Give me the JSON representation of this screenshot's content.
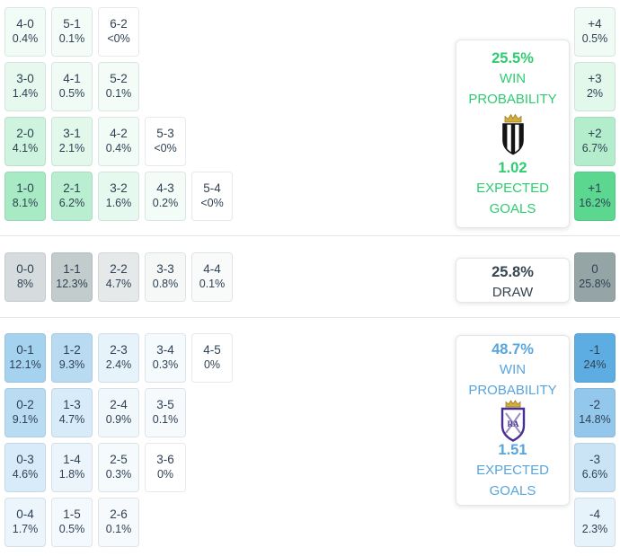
{
  "chart_data": {
    "type": "heatmap",
    "description": "Correct-score probability matrix with win/draw/loss summary panels and goal-difference distribution column",
    "colors": {
      "home_accent": "#2ecc71",
      "draw_accent": "#95a5a6",
      "away_accent": "#5dade2",
      "cell_text": "#2f4154"
    },
    "matrix": {
      "home": [
        [
          {
            "score": "4-0",
            "pct": "0.4%",
            "value": 0.4
          },
          {
            "score": "5-1",
            "pct": "0.1%",
            "value": 0.1
          },
          {
            "score": "6-2",
            "pct": "<0%",
            "value": 0
          }
        ],
        [
          {
            "score": "3-0",
            "pct": "1.4%",
            "value": 1.4
          },
          {
            "score": "4-1",
            "pct": "0.5%",
            "value": 0.5
          },
          {
            "score": "5-2",
            "pct": "0.1%",
            "value": 0.1
          }
        ],
        [
          {
            "score": "2-0",
            "pct": "4.1%",
            "value": 4.1
          },
          {
            "score": "3-1",
            "pct": "2.1%",
            "value": 2.1
          },
          {
            "score": "4-2",
            "pct": "0.4%",
            "value": 0.4
          },
          {
            "score": "5-3",
            "pct": "<0%",
            "value": 0
          }
        ],
        [
          {
            "score": "1-0",
            "pct": "8.1%",
            "value": 8.1
          },
          {
            "score": "2-1",
            "pct": "6.2%",
            "value": 6.2
          },
          {
            "score": "3-2",
            "pct": "1.6%",
            "value": 1.6
          },
          {
            "score": "4-3",
            "pct": "0.2%",
            "value": 0.2
          },
          {
            "score": "5-4",
            "pct": "<0%",
            "value": 0
          }
        ]
      ],
      "draw": [
        [
          {
            "score": "0-0",
            "pct": "8%",
            "value": 8
          },
          {
            "score": "1-1",
            "pct": "12.3%",
            "value": 12.3
          },
          {
            "score": "2-2",
            "pct": "4.7%",
            "value": 4.7
          },
          {
            "score": "3-3",
            "pct": "0.8%",
            "value": 0.8
          },
          {
            "score": "4-4",
            "pct": "0.1%",
            "value": 0.1
          }
        ]
      ],
      "away": [
        [
          {
            "score": "0-1",
            "pct": "12.1%",
            "value": 12.1
          },
          {
            "score": "1-2",
            "pct": "9.3%",
            "value": 9.3
          },
          {
            "score": "2-3",
            "pct": "2.4%",
            "value": 2.4
          },
          {
            "score": "3-4",
            "pct": "0.3%",
            "value": 0.3
          },
          {
            "score": "4-5",
            "pct": "0%",
            "value": 0
          }
        ],
        [
          {
            "score": "0-2",
            "pct": "9.1%",
            "value": 9.1
          },
          {
            "score": "1-3",
            "pct": "4.7%",
            "value": 4.7
          },
          {
            "score": "2-4",
            "pct": "0.9%",
            "value": 0.9
          },
          {
            "score": "3-5",
            "pct": "0.1%",
            "value": 0.1
          }
        ],
        [
          {
            "score": "0-3",
            "pct": "4.6%",
            "value": 4.6
          },
          {
            "score": "1-4",
            "pct": "1.8%",
            "value": 1.8
          },
          {
            "score": "2-5",
            "pct": "0.3%",
            "value": 0.3
          },
          {
            "score": "3-6",
            "pct": "0%",
            "value": 0
          }
        ],
        [
          {
            "score": "0-4",
            "pct": "1.7%",
            "value": 1.7
          },
          {
            "score": "1-5",
            "pct": "0.5%",
            "value": 0.5
          },
          {
            "score": "2-6",
            "pct": "0.1%",
            "value": 0.1
          }
        ]
      ]
    },
    "margins": {
      "home": [
        {
          "diff": "+4",
          "pct": "0.5%",
          "value": 0.5
        },
        {
          "diff": "+3",
          "pct": "2%",
          "value": 2
        },
        {
          "diff": "+2",
          "pct": "6.7%",
          "value": 6.7
        },
        {
          "diff": "+1",
          "pct": "16.2%",
          "value": 16.2
        }
      ],
      "draw": [
        {
          "diff": "0",
          "pct": "25.8%",
          "value": 25.8
        }
      ],
      "away": [
        {
          "diff": "-1",
          "pct": "24%",
          "value": 24
        },
        {
          "diff": "-2",
          "pct": "14.8%",
          "value": 14.8
        },
        {
          "diff": "-3",
          "pct": "6.6%",
          "value": 6.6
        },
        {
          "diff": "-4",
          "pct": "2.3%",
          "value": 2.3
        }
      ]
    },
    "panels": {
      "home": {
        "probability": "25.5%",
        "win_label_line1": "WIN",
        "win_label_line2": "PROBABILITY",
        "expected_goals": "1.02",
        "xg_label_line1": "EXPECTED",
        "xg_label_line2": "GOALS"
      },
      "draw": {
        "probability": "25.8%",
        "label": "DRAW"
      },
      "away": {
        "probability": "48.7%",
        "win_label_line1": "WIN",
        "win_label_line2": "PROBABILITY",
        "expected_goals": "1.51",
        "xg_label_line1": "EXPECTED",
        "xg_label_line2": "GOALS"
      }
    }
  }
}
